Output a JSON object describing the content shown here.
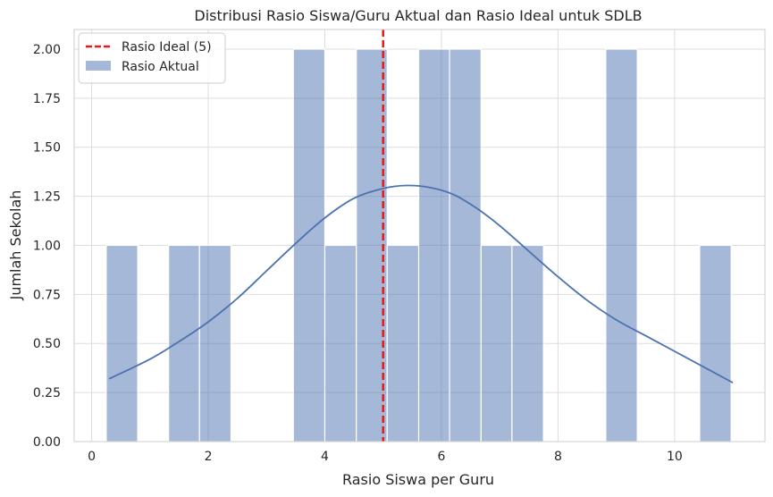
{
  "chart_data": {
    "type": "bar",
    "title": "Distribusi Rasio Siswa/Guru Aktual dan Rasio Ideal untuk SDLB",
    "xlabel": "Rasio Siswa per Guru",
    "ylabel": "Jumlah Sekolah",
    "xlim": [
      -0.3,
      11.55
    ],
    "ylim": [
      0,
      2.1
    ],
    "x_ticks": [
      0,
      2,
      4,
      6,
      8,
      10
    ],
    "x_tick_labels": [
      "0",
      "2",
      "4",
      "6",
      "8",
      "10"
    ],
    "y_ticks": [
      0,
      0.25,
      0.5,
      0.75,
      1.0,
      1.25,
      1.5,
      1.75,
      2.0
    ],
    "y_tick_labels": [
      "0.00",
      "0.25",
      "0.50",
      "0.75",
      "1.00",
      "1.25",
      "1.50",
      "1.75",
      "2.00"
    ],
    "grid": true,
    "legend_position": "top-left",
    "bins": [
      {
        "start": 0.25,
        "end": 0.79,
        "count": 1
      },
      {
        "start": 1.32,
        "end": 1.85,
        "count": 1
      },
      {
        "start": 1.85,
        "end": 2.39,
        "count": 1
      },
      {
        "start": 3.46,
        "end": 4.0,
        "count": 2
      },
      {
        "start": 4.0,
        "end": 4.54,
        "count": 1
      },
      {
        "start": 4.54,
        "end": 5.07,
        "count": 2
      },
      {
        "start": 5.07,
        "end": 5.61,
        "count": 1
      },
      {
        "start": 5.61,
        "end": 6.14,
        "count": 2
      },
      {
        "start": 6.14,
        "end": 6.68,
        "count": 2
      },
      {
        "start": 6.68,
        "end": 7.21,
        "count": 1
      },
      {
        "start": 7.21,
        "end": 7.75,
        "count": 1
      },
      {
        "start": 8.82,
        "end": 9.36,
        "count": 2
      },
      {
        "start": 10.43,
        "end": 10.97,
        "count": 1
      }
    ],
    "kde": {
      "x": [
        0.3,
        1.0,
        1.5,
        2.0,
        2.5,
        3.0,
        3.5,
        4.0,
        4.5,
        5.0,
        5.4,
        5.8,
        6.2,
        6.6,
        7.0,
        7.5,
        8.0,
        8.5,
        9.0,
        9.5,
        10.0,
        10.5,
        11.0
      ],
      "y": [
        0.32,
        0.42,
        0.51,
        0.61,
        0.73,
        0.87,
        1.01,
        1.14,
        1.24,
        1.29,
        1.305,
        1.295,
        1.26,
        1.19,
        1.1,
        0.97,
        0.84,
        0.72,
        0.62,
        0.54,
        0.46,
        0.38,
        0.3
      ]
    },
    "ideal_line": {
      "x": 5
    },
    "series": [
      {
        "name": "Rasio Ideal (5)",
        "color": "#e41a1c",
        "style": "dashed"
      },
      {
        "name": "Rasio Aktual",
        "color": "#4c72b0",
        "fill_alpha": 0.5
      }
    ]
  }
}
